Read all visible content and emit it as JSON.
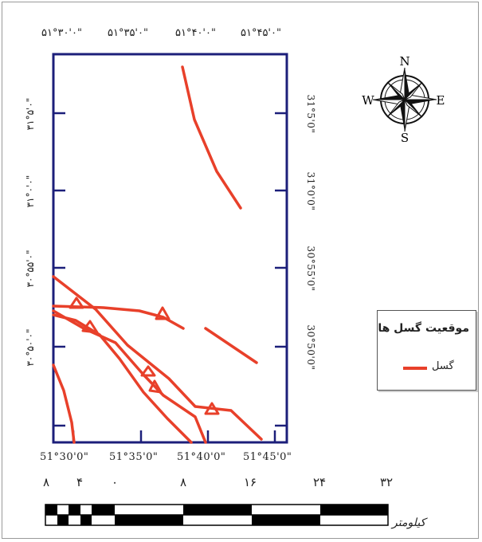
{
  "top_coords": [
    "۵۱°۳۰'۰\"",
    "۵۱°۳۵'۰\"",
    "۵۱°۴۰'۰\"",
    "۵۱°۴۵'۰\""
  ],
  "bottom_coords": [
    "51°30'0\"",
    "51°35'0\"",
    "51°40'0\"",
    "51°45'0\""
  ],
  "left_coords": [
    "۳۱°۵'۰\"",
    "۳۱°۰'۰\"",
    "۳۰°۵۵'۰\"",
    "۳۰°۵۰'۰\""
  ],
  "right_coords": [
    "31°5'0\"",
    "31°0'0\"",
    "30°55'0\"",
    "30°50'0\""
  ],
  "north_arrow": {
    "n": "N",
    "s": "S",
    "e": "E",
    "w": "W",
    "icon": "compass-rose-icon"
  },
  "legend": {
    "title": "موقعیت گسل ها",
    "item_label": "گسل",
    "fault_color": "#e8402a"
  },
  "scale_bar": {
    "labels": [
      "۸",
      "۴",
      "۰",
      "۸",
      "۱۶",
      "۲۴",
      "۳۲"
    ],
    "unit": "کیلومتر"
  },
  "frame_color": "#1c1f7a"
}
